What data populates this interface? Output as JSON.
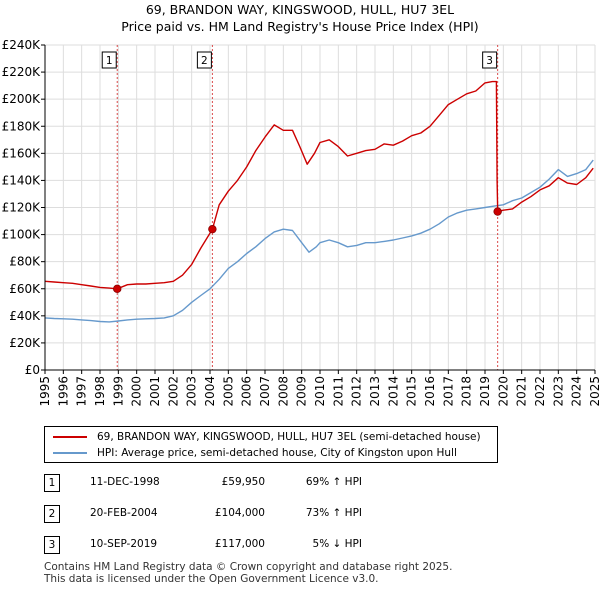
{
  "chart_data": {
    "type": "line",
    "title": "69, BRANDON WAY, KINGSWOOD, HULL, HU7 3EL",
    "subtitle": "Price paid vs. HM Land Registry's House Price Index (HPI)",
    "xlim": [
      1995,
      2025
    ],
    "ylim": [
      0,
      240000
    ],
    "x_ticks": [
      1995,
      1996,
      1997,
      1998,
      1999,
      2000,
      2001,
      2002,
      2003,
      2004,
      2005,
      2006,
      2007,
      2008,
      2009,
      2010,
      2011,
      2012,
      2013,
      2014,
      2015,
      2016,
      2017,
      2018,
      2019,
      2020,
      2021,
      2022,
      2023,
      2024,
      2025
    ],
    "y_ticks": [
      {
        "value": 0,
        "label": "£0"
      },
      {
        "value": 20000,
        "label": "£20K"
      },
      {
        "value": 40000,
        "label": "£40K"
      },
      {
        "value": 60000,
        "label": "£60K"
      },
      {
        "value": 80000,
        "label": "£80K"
      },
      {
        "value": 100000,
        "label": "£100K"
      },
      {
        "value": 120000,
        "label": "£120K"
      },
      {
        "value": 140000,
        "label": "£140K"
      },
      {
        "value": 160000,
        "label": "£160K"
      },
      {
        "value": 180000,
        "label": "£180K"
      },
      {
        "value": 200000,
        "label": "£200K"
      },
      {
        "value": 220000,
        "label": "£220K"
      },
      {
        "value": 240000,
        "label": "£240K"
      }
    ],
    "series": [
      {
        "name": "69, BRANDON WAY, KINGSWOOD, HULL, HU7 3EL (semi-detached house)",
        "color": "#cc0000",
        "points": [
          [
            1995.0,
            65500
          ],
          [
            1995.5,
            65000
          ],
          [
            1996.0,
            64500
          ],
          [
            1996.5,
            64000
          ],
          [
            1997.0,
            63000
          ],
          [
            1997.5,
            62000
          ],
          [
            1998.0,
            61000
          ],
          [
            1998.5,
            60500
          ],
          [
            1998.94,
            59950
          ],
          [
            1999.5,
            63000
          ],
          [
            2000.0,
            63500
          ],
          [
            2000.5,
            63500
          ],
          [
            2001.0,
            64000
          ],
          [
            2001.5,
            64500
          ],
          [
            2002.0,
            65500
          ],
          [
            2002.5,
            70000
          ],
          [
            2003.0,
            78000
          ],
          [
            2003.5,
            90000
          ],
          [
            2004.13,
            104000
          ],
          [
            2004.5,
            122000
          ],
          [
            2005.0,
            132000
          ],
          [
            2005.5,
            140000
          ],
          [
            2006.0,
            150000
          ],
          [
            2006.5,
            162000
          ],
          [
            2007.0,
            172000
          ],
          [
            2007.5,
            181000
          ],
          [
            2008.0,
            177000
          ],
          [
            2008.5,
            177000
          ],
          [
            2008.9,
            165000
          ],
          [
            2009.3,
            152000
          ],
          [
            2009.7,
            160000
          ],
          [
            2010.0,
            168000
          ],
          [
            2010.5,
            170000
          ],
          [
            2011.0,
            165000
          ],
          [
            2011.5,
            158000
          ],
          [
            2012.0,
            160000
          ],
          [
            2012.5,
            162000
          ],
          [
            2013.0,
            163000
          ],
          [
            2013.5,
            167000
          ],
          [
            2014.0,
            166000
          ],
          [
            2014.5,
            169000
          ],
          [
            2015.0,
            173000
          ],
          [
            2015.5,
            175000
          ],
          [
            2016.0,
            180000
          ],
          [
            2016.5,
            188000
          ],
          [
            2017.0,
            196000
          ],
          [
            2017.5,
            200000
          ],
          [
            2018.0,
            204000
          ],
          [
            2018.5,
            206000
          ],
          [
            2019.0,
            212000
          ],
          [
            2019.4,
            213000
          ],
          [
            2019.62,
            213000
          ],
          [
            2019.66,
            140000
          ],
          [
            2019.69,
            117000
          ],
          [
            2020.0,
            118000
          ],
          [
            2020.5,
            119000
          ],
          [
            2021.0,
            124000
          ],
          [
            2021.5,
            128000
          ],
          [
            2022.0,
            133000
          ],
          [
            2022.5,
            136000
          ],
          [
            2023.0,
            142000
          ],
          [
            2023.5,
            138000
          ],
          [
            2024.0,
            137000
          ],
          [
            2024.5,
            142000
          ],
          [
            2024.9,
            149000
          ]
        ]
      },
      {
        "name": "HPI: Average price, semi-detached house, City of Kingston upon Hull",
        "color": "#6699cc",
        "points": [
          [
            1995.0,
            38500
          ],
          [
            1995.5,
            38000
          ],
          [
            1996.0,
            37800
          ],
          [
            1996.5,
            37500
          ],
          [
            1997.0,
            37000
          ],
          [
            1997.5,
            36500
          ],
          [
            1998.0,
            35800
          ],
          [
            1998.5,
            35500
          ],
          [
            1999.0,
            36200
          ],
          [
            1999.5,
            37000
          ],
          [
            2000.0,
            37500
          ],
          [
            2000.5,
            37800
          ],
          [
            2001.0,
            38000
          ],
          [
            2001.5,
            38500
          ],
          [
            2002.0,
            40000
          ],
          [
            2002.5,
            44000
          ],
          [
            2003.0,
            50000
          ],
          [
            2003.5,
            55000
          ],
          [
            2004.0,
            60000
          ],
          [
            2004.5,
            67000
          ],
          [
            2005.0,
            75000
          ],
          [
            2005.5,
            80000
          ],
          [
            2006.0,
            86000
          ],
          [
            2006.5,
            91000
          ],
          [
            2007.0,
            97000
          ],
          [
            2007.5,
            102000
          ],
          [
            2008.0,
            104000
          ],
          [
            2008.5,
            103000
          ],
          [
            2009.0,
            94000
          ],
          [
            2009.4,
            87000
          ],
          [
            2009.8,
            91000
          ],
          [
            2010.0,
            94000
          ],
          [
            2010.5,
            96000
          ],
          [
            2011.0,
            94000
          ],
          [
            2011.5,
            91000
          ],
          [
            2012.0,
            92000
          ],
          [
            2012.5,
            94000
          ],
          [
            2013.0,
            94000
          ],
          [
            2013.5,
            95000
          ],
          [
            2014.0,
            96000
          ],
          [
            2014.5,
            97500
          ],
          [
            2015.0,
            99000
          ],
          [
            2015.5,
            101000
          ],
          [
            2016.0,
            104000
          ],
          [
            2016.5,
            108000
          ],
          [
            2017.0,
            113000
          ],
          [
            2017.5,
            116000
          ],
          [
            2018.0,
            118000
          ],
          [
            2018.5,
            119000
          ],
          [
            2019.0,
            120000
          ],
          [
            2019.5,
            121000
          ],
          [
            2020.0,
            122000
          ],
          [
            2020.5,
            125000
          ],
          [
            2021.0,
            127000
          ],
          [
            2021.5,
            131000
          ],
          [
            2022.0,
            135000
          ],
          [
            2022.5,
            141000
          ],
          [
            2023.0,
            148000
          ],
          [
            2023.5,
            143000
          ],
          [
            2024.0,
            145000
          ],
          [
            2024.5,
            148000
          ],
          [
            2024.9,
            155000
          ]
        ]
      }
    ],
    "sales": [
      {
        "id": "1",
        "x": 1998.94,
        "price": 59950,
        "label": "1",
        "date": "11-DEC-1998",
        "price_text": "£59,950",
        "hpi_text": "69% ↑ HPI"
      },
      {
        "id": "2",
        "x": 2004.13,
        "price": 104000,
        "label": "2",
        "date": "20-FEB-2004",
        "price_text": "£104,000",
        "hpi_text": "73% ↑ HPI"
      },
      {
        "id": "3",
        "x": 2019.69,
        "price": 117000,
        "label": "3",
        "date": "10-SEP-2019",
        "price_text": "£117,000",
        "hpi_text": "5% ↓ HPI"
      }
    ],
    "colors": {
      "price_line": "#cc0000",
      "hpi_line": "#6699cc",
      "grid": "#dddddd",
      "plot_bg": "#ffffff",
      "marker_line": "#cc0000"
    }
  },
  "legend": {
    "items": [
      {
        "label": "69, BRANDON WAY, KINGSWOOD, HULL, HU7 3EL (semi-detached house)"
      },
      {
        "label": "HPI: Average price, semi-detached house, City of Kingston upon Hull"
      }
    ]
  },
  "footer": {
    "line1": "Contains HM Land Registry data © Crown copyright and database right 2025.",
    "line2": "This data is licensed under the Open Government Licence v3.0."
  }
}
